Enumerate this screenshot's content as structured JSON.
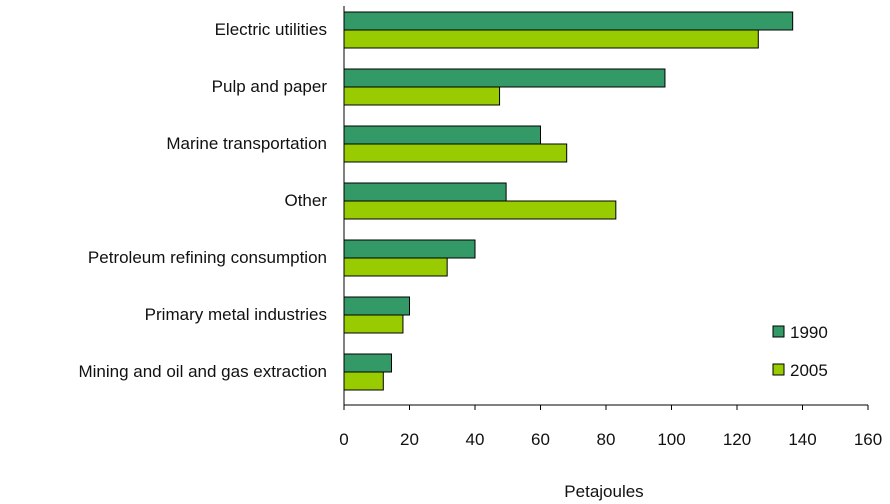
{
  "chart_data": {
    "type": "bar",
    "orientation": "horizontal",
    "categories": [
      "Electric utilities",
      "Pulp and paper",
      "Marine transportation",
      "Other",
      "Petroleum refining consumption",
      "Primary metal industries",
      "Mining and oil and gas extraction"
    ],
    "series": [
      {
        "name": "1990",
        "color": "#339966",
        "values": [
          137,
          98,
          60,
          49.5,
          40,
          20,
          14.5
        ]
      },
      {
        "name": "2005",
        "color": "#99cc00",
        "values": [
          126.5,
          47.5,
          68,
          83,
          31.5,
          18,
          12
        ]
      }
    ],
    "xlabel": "Petajoules",
    "ylabel": "",
    "xlim": [
      0,
      160
    ],
    "xticks": [
      0,
      20,
      40,
      60,
      80,
      100,
      120,
      140,
      160
    ],
    "grid": false,
    "legend_position": "bottom-right"
  }
}
